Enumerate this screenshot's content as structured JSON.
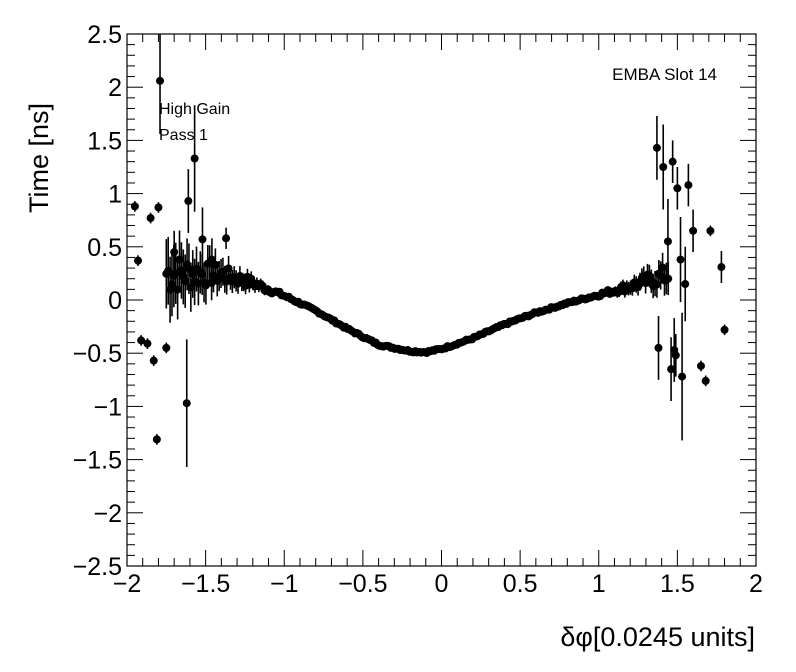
{
  "chart_data": {
    "type": "scatter",
    "title": "",
    "xlabel": "δφ[0.0245 units]",
    "ylabel": "Time [ns]",
    "xlim": [
      -2,
      2
    ],
    "ylim": [
      -2.5,
      2.5
    ],
    "x_ticks": [
      "−2",
      "−1.5",
      "−1",
      "−0.5",
      "0",
      "0.5",
      "1",
      "1.5",
      "2"
    ],
    "y_ticks": [
      "−2.5",
      "−2",
      "−1.5",
      "−1",
      "−0.5",
      "0",
      "0.5",
      "1",
      "1.5",
      "2",
      "2.5"
    ],
    "grid": false,
    "annotations": {
      "slot": "EMBA Slot 14",
      "gain": "High Gain",
      "pass": "Pass 1"
    },
    "marker_color": "#000000",
    "scattered_points": [
      {
        "x": -1.95,
        "y": 0.88,
        "err": 0.05
      },
      {
        "x": -1.93,
        "y": 0.37,
        "err": 0.05
      },
      {
        "x": -1.91,
        "y": -0.38,
        "err": 0.05
      },
      {
        "x": -1.87,
        "y": -0.41,
        "err": 0.05
      },
      {
        "x": -1.85,
        "y": 0.77,
        "err": 0.05
      },
      {
        "x": -1.83,
        "y": -0.57,
        "err": 0.05
      },
      {
        "x": -1.81,
        "y": -1.31,
        "err": 0.05
      },
      {
        "x": -1.8,
        "y": 0.87,
        "err": 0.05
      },
      {
        "x": -1.79,
        "y": 2.06,
        "err": 0.5
      },
      {
        "x": -1.75,
        "y": -0.45,
        "err": 0.05
      },
      {
        "x": -1.7,
        "y": 0.45,
        "err": 0.2
      },
      {
        "x": -1.62,
        "y": -0.97,
        "err": 0.6
      },
      {
        "x": -1.61,
        "y": 0.93,
        "err": 0.3
      },
      {
        "x": -1.57,
        "y": 1.33,
        "err": 0.5
      },
      {
        "x": -1.52,
        "y": 0.57,
        "err": 0.3
      },
      {
        "x": -1.46,
        "y": 0.38,
        "err": 0.2
      },
      {
        "x": -1.37,
        "y": 0.58,
        "err": 0.1
      },
      {
        "x": 1.37,
        "y": 1.43,
        "err": 0.3
      },
      {
        "x": 1.38,
        "y": -0.45,
        "err": 0.3
      },
      {
        "x": 1.41,
        "y": 1.25,
        "err": 0.4
      },
      {
        "x": 1.44,
        "y": 0.55,
        "err": 0.4
      },
      {
        "x": 1.46,
        "y": -0.65,
        "err": 0.3
      },
      {
        "x": 1.47,
        "y": 1.3,
        "err": 0.2
      },
      {
        "x": 1.48,
        "y": -0.47,
        "err": 0.3
      },
      {
        "x": 1.49,
        "y": -0.52,
        "err": 0.2
      },
      {
        "x": 1.5,
        "y": 1.05,
        "err": 0.2
      },
      {
        "x": 1.52,
        "y": 0.38,
        "err": 0.4
      },
      {
        "x": 1.53,
        "y": -0.72,
        "err": 0.6
      },
      {
        "x": 1.55,
        "y": 0.15,
        "err": 0.35
      },
      {
        "x": 1.57,
        "y": 1.08,
        "err": 0.2
      },
      {
        "x": 1.6,
        "y": 0.65,
        "err": 0.2
      },
      {
        "x": 1.65,
        "y": -0.62,
        "err": 0.05
      },
      {
        "x": 1.68,
        "y": -0.76,
        "err": 0.05
      },
      {
        "x": 1.71,
        "y": 0.65,
        "err": 0.05
      },
      {
        "x": 1.78,
        "y": 0.31,
        "err": 0.15
      },
      {
        "x": 1.8,
        "y": -0.28,
        "err": 0.05
      }
    ],
    "curve_profile": [
      {
        "x": -1.75,
        "y": 0.25
      },
      {
        "x": -1.4,
        "y": 0.24
      },
      {
        "x": -1.2,
        "y": 0.16
      },
      {
        "x": -1.0,
        "y": 0.04
      },
      {
        "x": -0.8,
        "y": -0.1
      },
      {
        "x": -0.6,
        "y": -0.27
      },
      {
        "x": -0.4,
        "y": -0.42
      },
      {
        "x": -0.2,
        "y": -0.48
      },
      {
        "x": -0.1,
        "y": -0.49
      },
      {
        "x": 0.0,
        "y": -0.46
      },
      {
        "x": 0.2,
        "y": -0.36
      },
      {
        "x": 0.4,
        "y": -0.23
      },
      {
        "x": 0.6,
        "y": -0.12
      },
      {
        "x": 0.8,
        "y": -0.03
      },
      {
        "x": 1.0,
        "y": 0.05
      },
      {
        "x": 1.2,
        "y": 0.13
      },
      {
        "x": 1.45,
        "y": 0.24
      }
    ]
  }
}
